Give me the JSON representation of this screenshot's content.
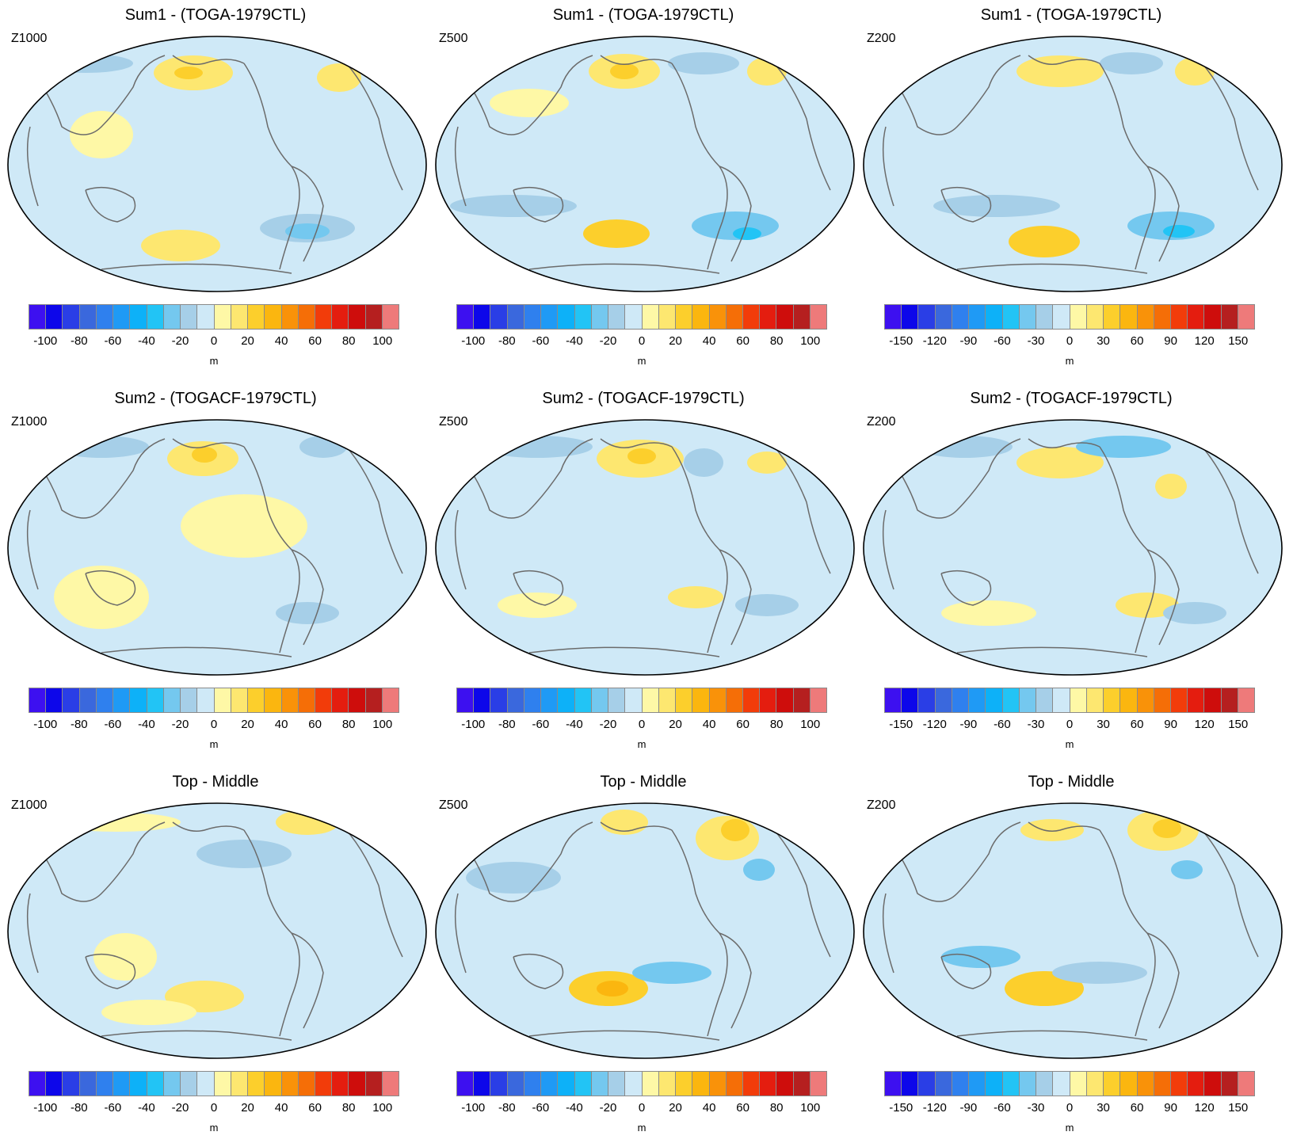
{
  "colormap": [
    "#3d10f0",
    "#0d07ea",
    "#2a3ee6",
    "#3a68dd",
    "#2f80ee",
    "#1f9af5",
    "#0db1f8",
    "#22c4f5",
    "#74c8ef",
    "#a6cfe8",
    "#cfe9f7",
    "#fef8a6",
    "#fde770",
    "#fccf2c",
    "#fbb60f",
    "#f99209",
    "#f56e07",
    "#f23c0a",
    "#e41d0f",
    "#ce0d0c",
    "#b51f1f",
    "#ee7a7a"
  ],
  "map_colors": {
    "ocean_base": "#cfe9f7",
    "pos_light": "#fef8a6",
    "pos_mid": "#fde770",
    "pos_strong": "#fccf2c",
    "pos_stronger": "#fbb60f",
    "neg_light": "#a6cfe8",
    "neg_mid": "#74c8ef",
    "neg_strong": "#22c4f5",
    "coast": "#6b6b6b",
    "border": "#000000"
  },
  "panels": [
    {
      "title": "Sum1 - (TOGA-1979CTL)",
      "level": "Z1000",
      "ticks": [
        "-100",
        "-80",
        "-60",
        "-40",
        "-20",
        "0",
        "20",
        "40",
        "60",
        "80",
        "100"
      ],
      "unit": "m"
    },
    {
      "title": "Sum1 - (TOGA-1979CTL)",
      "level": "Z500",
      "ticks": [
        "-100",
        "-80",
        "-60",
        "-40",
        "-20",
        "0",
        "20",
        "40",
        "60",
        "80",
        "100"
      ],
      "unit": "m"
    },
    {
      "title": "Sum1 - (TOGA-1979CTL)",
      "level": "Z200",
      "ticks": [
        "-150",
        "-120",
        "-90",
        "-60",
        "-30",
        "0",
        "30",
        "60",
        "90",
        "120",
        "150"
      ],
      "unit": "m"
    },
    {
      "title": "Sum2 - (TOGACF-1979CTL)",
      "level": "Z1000",
      "ticks": [
        "-100",
        "-80",
        "-60",
        "-40",
        "-20",
        "0",
        "20",
        "40",
        "60",
        "80",
        "100"
      ],
      "unit": "m"
    },
    {
      "title": "Sum2 - (TOGACF-1979CTL)",
      "level": "Z500",
      "ticks": [
        "-100",
        "-80",
        "-60",
        "-40",
        "-20",
        "0",
        "20",
        "40",
        "60",
        "80",
        "100"
      ],
      "unit": "m"
    },
    {
      "title": "Sum2 - (TOGACF-1979CTL)",
      "level": "Z200",
      "ticks": [
        "-150",
        "-120",
        "-90",
        "-60",
        "-30",
        "0",
        "30",
        "60",
        "90",
        "120",
        "150"
      ],
      "unit": "m"
    },
    {
      "title": "Top - Middle",
      "level": "Z1000",
      "ticks": [
        "-100",
        "-80",
        "-60",
        "-40",
        "-20",
        "0",
        "20",
        "40",
        "60",
        "80",
        "100"
      ],
      "unit": "m"
    },
    {
      "title": "Top - Middle",
      "level": "Z500",
      "ticks": [
        "-100",
        "-80",
        "-60",
        "-40",
        "-20",
        "0",
        "20",
        "40",
        "60",
        "80",
        "100"
      ],
      "unit": "m"
    },
    {
      "title": "Top - Middle",
      "level": "Z200",
      "ticks": [
        "-150",
        "-120",
        "-90",
        "-60",
        "-30",
        "0",
        "30",
        "60",
        "90",
        "120",
        "150"
      ],
      "unit": "m"
    }
  ]
}
